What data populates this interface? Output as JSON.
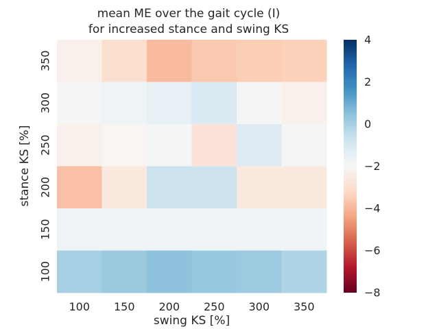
{
  "chart_data": {
    "type": "heatmap",
    "title": [
      "mean ME over the gait cycle (I)",
      "for increased stance and swing KS"
    ],
    "xlabel": "swing KS [%]",
    "ylabel": "stance KS [%]",
    "x_categories": [
      "100",
      "150",
      "200",
      "250",
      "300",
      "350"
    ],
    "y_categories": [
      "350",
      "300",
      "250",
      "200",
      "150",
      "100"
    ],
    "values": [
      [
        -2.3,
        -3.0,
        -3.9,
        -3.6,
        -3.5,
        -3.4
      ],
      [
        -1.9,
        -1.7,
        -1.5,
        -1.1,
        -1.9,
        -2.3
      ],
      [
        -2.3,
        -2.1,
        -1.9,
        -2.8,
        -1.2,
        -1.9
      ],
      [
        -3.8,
        -2.6,
        -0.7,
        -0.7,
        -2.6,
        -2.6
      ],
      [
        -1.7,
        -1.7,
        -1.7,
        -1.7,
        -1.8,
        -1.8
      ],
      [
        0.0,
        0.25,
        0.45,
        0.3,
        0.2,
        -0.15
      ]
    ],
    "colorbar": {
      "colormap": "RdBu",
      "vmin": -8,
      "vmax": 4,
      "ticks": [
        4,
        2,
        0,
        -2,
        -4,
        -6,
        -8
      ],
      "tick_labels": [
        "4",
        "2",
        "0",
        "−2",
        "−4",
        "−6",
        "−8"
      ]
    },
    "grid": false
  }
}
